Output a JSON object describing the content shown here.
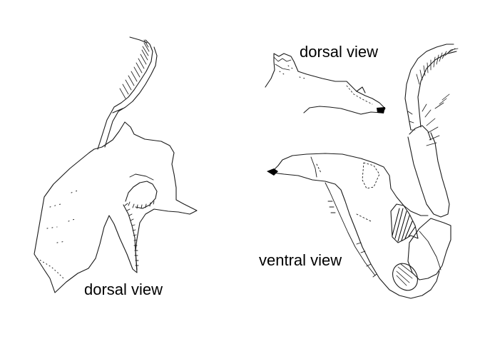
{
  "labels": {
    "left_dorsal": "dorsal view",
    "top_dorsal": "dorsal view",
    "ventral": "ventral view"
  },
  "colors": {
    "line": "#1a1a1a",
    "hatch": "#000000",
    "background": "#ffffff"
  }
}
